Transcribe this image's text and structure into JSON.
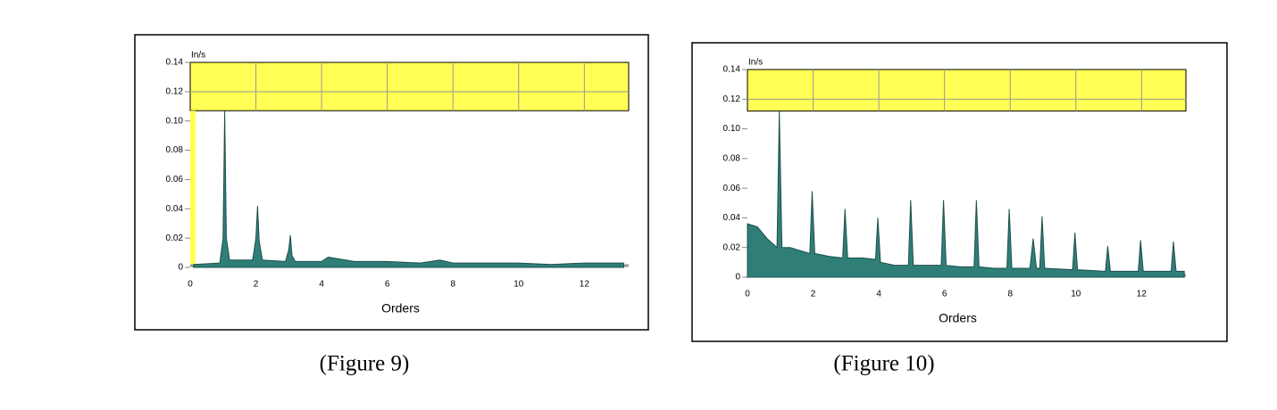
{
  "chart_data": [
    {
      "type": "area",
      "y_label": "In/s",
      "x_label": "Orders",
      "caption": "(Figure 9)",
      "color": "#2f7f78",
      "band": [
        0.107,
        0.14
      ],
      "band_color": "#ffff55",
      "x": [
        0.1,
        0.9,
        1.0,
        1.05,
        1.1,
        1.2,
        1.9,
        2.0,
        2.05,
        2.1,
        2.2,
        2.9,
        3.0,
        3.05,
        3.1,
        3.2,
        4.0,
        4.2,
        5.0,
        6.0,
        7.0,
        7.6,
        8.0,
        9.0,
        10.0,
        11.0,
        12.0,
        13.2
      ],
      "values": [
        0.002,
        0.003,
        0.02,
        0.107,
        0.02,
        0.005,
        0.005,
        0.02,
        0.042,
        0.018,
        0.005,
        0.004,
        0.012,
        0.022,
        0.008,
        0.004,
        0.004,
        0.007,
        0.004,
        0.004,
        0.003,
        0.005,
        0.003,
        0.003,
        0.003,
        0.002,
        0.003,
        0.003
      ],
      "xlim": [
        0,
        13.35
      ],
      "ylim": [
        0,
        0.14
      ],
      "xticks": [
        0,
        2,
        4,
        6,
        8,
        10,
        12
      ],
      "yticks": [
        0,
        0.02,
        0.04,
        0.06,
        0.08,
        {
          "value": 0.1,
          "label": "0.10"
        },
        0.12,
        0.14
      ]
    },
    {
      "type": "area",
      "y_label": "In/s",
      "x_label": "Orders",
      "caption": "(Figure 10)",
      "color": "#2f7f78",
      "band": [
        0.112,
        0.14
      ],
      "band_color": "#ffff55",
      "x": [
        0.0,
        0.3,
        0.6,
        0.9,
        0.97,
        1.05,
        1.3,
        1.9,
        1.97,
        2.05,
        2.5,
        2.9,
        2.97,
        3.05,
        3.5,
        3.9,
        3.97,
        4.05,
        4.5,
        4.9,
        4.97,
        5.05,
        5.5,
        5.9,
        5.97,
        6.05,
        6.5,
        6.9,
        6.97,
        7.05,
        7.5,
        7.9,
        7.97,
        8.05,
        8.6,
        8.7,
        8.8,
        8.9,
        8.97,
        9.05,
        9.9,
        9.97,
        10.05,
        10.9,
        10.97,
        11.05,
        11.9,
        11.97,
        12.05,
        12.9,
        12.97,
        13.05,
        13.3
      ],
      "values": [
        0.036,
        0.034,
        0.026,
        0.02,
        0.112,
        0.02,
        0.02,
        0.016,
        0.058,
        0.016,
        0.014,
        0.013,
        0.046,
        0.013,
        0.013,
        0.012,
        0.04,
        0.01,
        0.008,
        0.008,
        0.052,
        0.008,
        0.008,
        0.008,
        0.052,
        0.008,
        0.007,
        0.007,
        0.052,
        0.007,
        0.006,
        0.006,
        0.046,
        0.006,
        0.006,
        0.026,
        0.006,
        0.006,
        0.041,
        0.006,
        0.005,
        0.03,
        0.005,
        0.004,
        0.021,
        0.004,
        0.004,
        0.025,
        0.004,
        0.004,
        0.024,
        0.004,
        0.004
      ],
      "xlim": [
        0,
        13.35
      ],
      "ylim": [
        0,
        0.14
      ],
      "xticks": [
        0,
        2,
        4,
        6,
        8,
        10,
        12
      ],
      "yticks": [
        0,
        0.02,
        0.04,
        0.06,
        0.08,
        {
          "value": 0.1,
          "label": "0.10"
        },
        0.12,
        0.14
      ]
    }
  ]
}
